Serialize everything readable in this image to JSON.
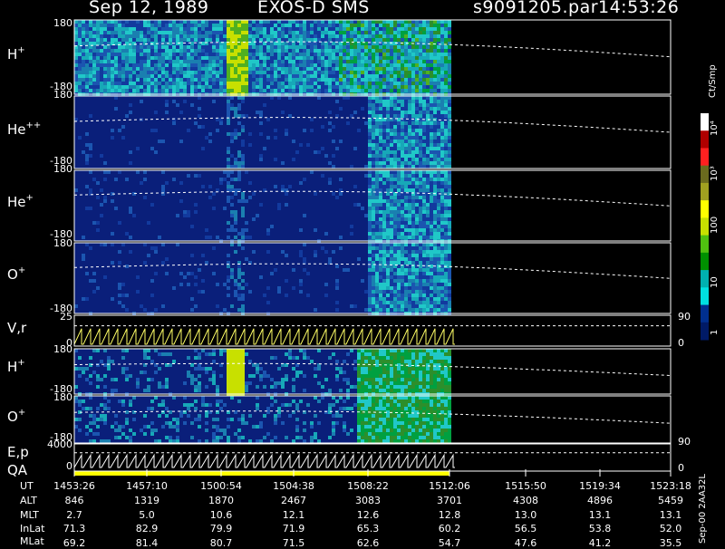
{
  "header": {
    "date": "Sep 12, 1989",
    "instrument": "EXOS-D SMS",
    "file": "s9091205.par",
    "time": "14:53:26"
  },
  "panels": [
    {
      "id": "h-plus",
      "species": "H",
      "charge": "+",
      "y_top": "180",
      "y_bottom": "-180"
    },
    {
      "id": "he-plusplus",
      "species": "He",
      "charge": "++",
      "y_top": "180",
      "y_bottom": "-180"
    },
    {
      "id": "he-plus",
      "species": "He",
      "charge": "+",
      "y_top": "180",
      "y_bottom": "-180"
    },
    {
      "id": "o-plus",
      "species": "O",
      "charge": "+",
      "y_top": "180",
      "y_bottom": "-180"
    },
    {
      "id": "v-r",
      "label": "V,r",
      "y_top": "25",
      "y_bottom": "0",
      "right_top": "90",
      "right_bottom": "0"
    },
    {
      "id": "h-plus-2",
      "species": "H",
      "charge": "+",
      "y_top": "180",
      "y_bottom": "-180"
    },
    {
      "id": "o-plus-2",
      "species": "O",
      "charge": "+",
      "y_top": "180",
      "y_bottom": "-180"
    },
    {
      "id": "e-p",
      "label": "E,p",
      "y_top": "4000",
      "y_bottom": "0",
      "right_top": "90",
      "right_bottom": "0"
    }
  ],
  "qa_label": "QA",
  "colorbar": {
    "title": "Ct/Smp",
    "labels": [
      "10⁴",
      "10³",
      "100",
      "10",
      "1"
    ],
    "colors": [
      "#ffffff",
      "#b00000",
      "#ff2020",
      "#6b6b1e",
      "#a0a020",
      "#ffff00",
      "#c8e000",
      "#50c010",
      "#009000",
      "#00b0b0",
      "#00e0e0",
      "#002f8f",
      "#001a66"
    ]
  },
  "chart_data": {
    "type": "heatmap",
    "title": "Sep 12, 1989   EXOS-D SMS",
    "x_label": "UT",
    "x_ticks": [
      "1453:26",
      "1457:10",
      "1500:54",
      "1504:38",
      "1508:22",
      "1512:06",
      "1515:50",
      "1519:34",
      "1523:18"
    ],
    "data_end_ut": "1512:06",
    "ephemeris": [
      {
        "name": "ALT",
        "values": [
          "846",
          "1319",
          "1870",
          "2467",
          "3083",
          "3701",
          "4308",
          "4896",
          "5459"
        ]
      },
      {
        "name": "MLT",
        "values": [
          "2.7",
          "5.0",
          "10.6",
          "12.1",
          "12.6",
          "12.8",
          "13.0",
          "13.1",
          "13.1"
        ]
      },
      {
        "name": "InLat",
        "values": [
          "71.3",
          "82.9",
          "79.9",
          "71.9",
          "65.3",
          "60.2",
          "56.5",
          "53.8",
          "52.0"
        ]
      },
      {
        "name": "MLat",
        "values": [
          "69.2",
          "81.4",
          "80.7",
          "71.5",
          "62.6",
          "54.7",
          "47.6",
          "41.2",
          "35.5"
        ]
      }
    ],
    "side_text": "Sep-00  2AA32L"
  }
}
